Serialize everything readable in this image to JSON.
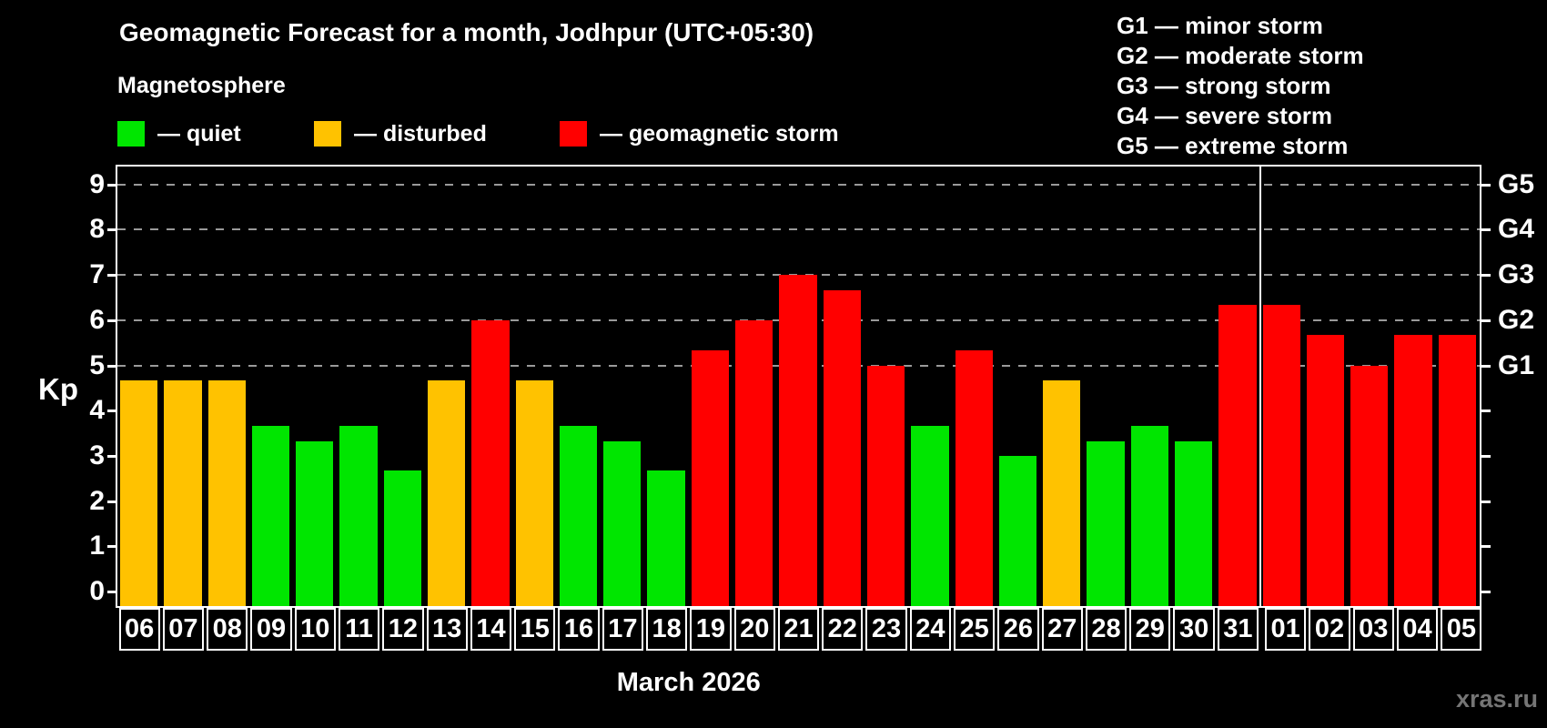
{
  "header": {
    "title": "Geomagnetic Forecast for a month, Jodhpur (UTC+05:30)",
    "subtitle": "Magnetosphere"
  },
  "legend": {
    "items": [
      {
        "key": "quiet",
        "label": "— quiet",
        "color": "#00e600"
      },
      {
        "key": "disturbed",
        "label": "— disturbed",
        "color": "#ffc200"
      },
      {
        "key": "storm",
        "label": "— geomagnetic storm",
        "color": "#ff0000"
      }
    ]
  },
  "storm_scale": [
    "G1 — minor storm",
    "G2 — moderate storm",
    "G3 — strong storm",
    "G4 — severe storm",
    "G5 — extreme storm"
  ],
  "axes": {
    "y_label": "Kp",
    "x_label": "March 2026"
  },
  "watermark": "xras.ru",
  "chart_data": {
    "type": "bar",
    "title": "Geomagnetic Forecast for a month, Jodhpur (UTC+05:30)",
    "subtitle": "Magnetosphere",
    "xlabel": "March 2026",
    "ylabel": "Kp",
    "ylim": [
      0,
      9
    ],
    "y_ticks": [
      0,
      1,
      2,
      3,
      4,
      5,
      6,
      7,
      8,
      9
    ],
    "gridlines": [
      5,
      6,
      7,
      8,
      9
    ],
    "grid": "dashed, levels 5-9 only",
    "legend_position": "top-left",
    "right_axis_labels": [
      {
        "tick": 5,
        "label": "G1"
      },
      {
        "tick": 6,
        "label": "G2"
      },
      {
        "tick": 7,
        "label": "G3"
      },
      {
        "tick": 8,
        "label": "G4"
      },
      {
        "tick": 9,
        "label": "G5"
      }
    ],
    "categories": [
      "06",
      "07",
      "08",
      "09",
      "10",
      "11",
      "12",
      "13",
      "14",
      "15",
      "16",
      "17",
      "18",
      "19",
      "20",
      "21",
      "22",
      "23",
      "24",
      "25",
      "26",
      "27",
      "28",
      "29",
      "30",
      "31",
      "01",
      "02",
      "03",
      "04",
      "05"
    ],
    "values": [
      4.67,
      4.67,
      4.67,
      3.67,
      3.33,
      3.67,
      2.67,
      4.67,
      6.0,
      4.67,
      3.67,
      3.33,
      2.67,
      5.33,
      6.0,
      7.0,
      6.67,
      5.0,
      3.67,
      5.33,
      3.0,
      4.67,
      3.33,
      3.67,
      3.33,
      6.33,
      6.33,
      5.67,
      5.0,
      5.67,
      5.67
    ],
    "levels": [
      "disturbed",
      "disturbed",
      "disturbed",
      "quiet",
      "quiet",
      "quiet",
      "quiet",
      "disturbed",
      "storm",
      "disturbed",
      "quiet",
      "quiet",
      "quiet",
      "storm",
      "storm",
      "storm",
      "storm",
      "storm",
      "quiet",
      "storm",
      "quiet",
      "disturbed",
      "quiet",
      "quiet",
      "quiet",
      "storm",
      "storm",
      "storm",
      "storm",
      "storm",
      "storm"
    ],
    "colors": {
      "quiet": "#00e600",
      "disturbed": "#ffc200",
      "storm": "#ff0000"
    },
    "month_separator_after_index": 25
  }
}
